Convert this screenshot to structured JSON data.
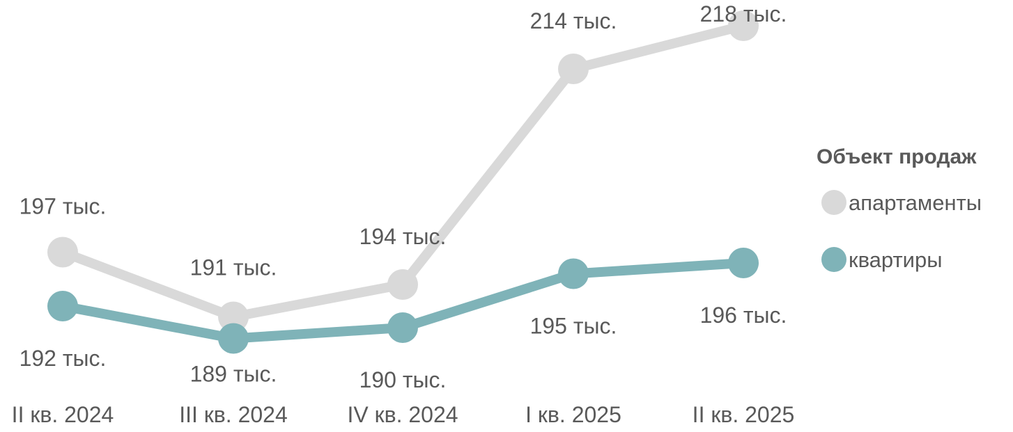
{
  "chart_data": {
    "type": "line",
    "categories": [
      "II кв. 2024",
      "III кв. 2024",
      "IV кв. 2024",
      "I кв. 2025",
      "II кв. 2025"
    ],
    "series": [
      {
        "name": "апартаменты",
        "values": [
          197,
          191,
          194,
          214,
          218
        ],
        "labels": [
          "197 тыс.",
          "191 тыс.",
          "194 тыс.",
          "214 тыс.",
          "218 тыс."
        ],
        "color": "#d9d9d9"
      },
      {
        "name": "квартиры",
        "values": [
          192,
          189,
          190,
          195,
          196
        ],
        "labels": [
          "192 тыс.",
          "189 тыс.",
          "190 тыс.",
          "195 тыс.",
          "196 тыс."
        ],
        "color": "#7fb3b8"
      }
    ],
    "legend": {
      "title": "Объект продаж",
      "position": "right"
    },
    "grid": false,
    "yaxis_visible": false
  }
}
